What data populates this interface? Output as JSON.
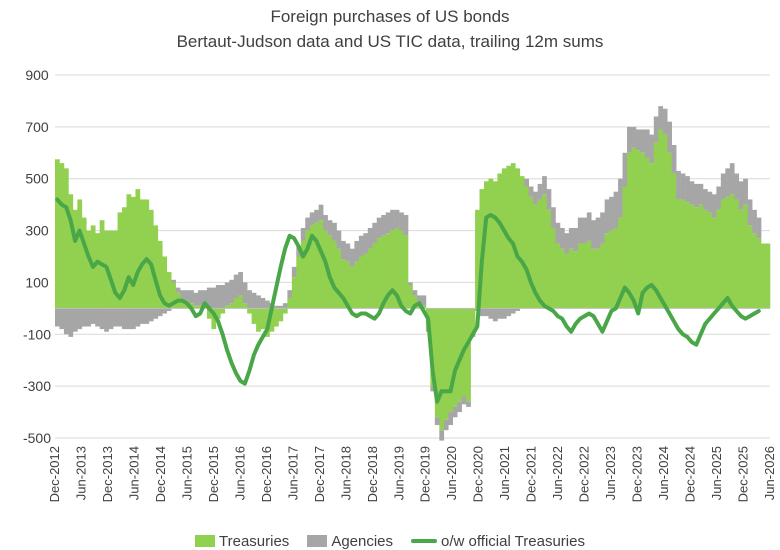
{
  "chart_data": {
    "type": "bar",
    "title": "Foreign purchases of US bonds",
    "subtitle": "Bertaut-Judson data and US TIC data, trailing 12m sums",
    "xlabel": "",
    "ylabel": "",
    "ylim": [
      -500,
      900
    ],
    "yticks": [
      900,
      700,
      500,
      300,
      100,
      -100,
      -300,
      -500
    ],
    "grid": true,
    "legend_position": "bottom",
    "x_tick_labels": [
      "Dec-2012",
      "Jun-2013",
      "Dec-2013",
      "Jun-2014",
      "Dec-2014",
      "Jun-2015",
      "Dec-2015",
      "Jun-2016",
      "Dec-2016",
      "Jun-2017",
      "Dec-2017",
      "Jun-2018",
      "Dec-2018",
      "Jun-2019",
      "Dec-2019",
      "Jun-2020",
      "Dec-2020",
      "Jun-2021",
      "Dec-2021",
      "Jun-2022",
      "Dec-2022",
      "Jun-2023",
      "Dec-2023",
      "Jun-2024",
      "Dec-2024",
      "Jun-2025",
      "Dec-2025",
      "Jun-2026"
    ],
    "colors": {
      "treasuries": "#92d050",
      "agencies": "#a6a6a6",
      "official": "#4aa748"
    },
    "series": [
      {
        "name": "Treasuries",
        "kind": "stacked-bar",
        "values": [
          575,
          560,
          540,
          440,
          380,
          420,
          350,
          300,
          320,
          290,
          340,
          300,
          300,
          300,
          370,
          390,
          440,
          430,
          460,
          420,
          420,
          380,
          320,
          260,
          200,
          140,
          100,
          60,
          40,
          30,
          20,
          10,
          10,
          0,
          -40,
          -80,
          -40,
          -20,
          10,
          20,
          40,
          50,
          20,
          -20,
          -60,
          -90,
          -80,
          -110,
          -90,
          -70,
          -50,
          -20,
          40,
          120,
          200,
          260,
          300,
          320,
          330,
          340,
          300,
          280,
          260,
          230,
          190,
          180,
          160,
          180,
          200,
          210,
          230,
          250,
          270,
          280,
          290,
          300,
          310,
          300,
          280,
          90,
          50,
          20,
          10,
          -80,
          -300,
          -420,
          -470,
          -430,
          -400,
          -380,
          -360,
          -340,
          -360,
          -100,
          380,
          460,
          490,
          500,
          490,
          520,
          540,
          550,
          560,
          540,
          510,
          470,
          430,
          400,
          420,
          440,
          380,
          310,
          250,
          230,
          210,
          230,
          220,
          250,
          250,
          260,
          230,
          230,
          250,
          290,
          300,
          310,
          350,
          470,
          600,
          620,
          610,
          600,
          580,
          560,
          640,
          690,
          670,
          600,
          520,
          420,
          420,
          410,
          400,
          390,
          400,
          380,
          370,
          350,
          380,
          420,
          430,
          440,
          420,
          380,
          400,
          320,
          290,
          270,
          250,
          250
        ]
      },
      {
        "name": "Agencies",
        "kind": "stacked-bar",
        "values": [
          -70,
          -80,
          -100,
          -110,
          -90,
          -80,
          -70,
          -70,
          -60,
          -70,
          -80,
          -90,
          -80,
          -70,
          -70,
          -80,
          -80,
          -80,
          -70,
          -60,
          -60,
          -50,
          -40,
          -30,
          -20,
          -10,
          10,
          20,
          30,
          40,
          50,
          50,
          60,
          70,
          80,
          80,
          90,
          90,
          90,
          90,
          90,
          90,
          80,
          70,
          60,
          50,
          40,
          30,
          20,
          10,
          10,
          20,
          30,
          40,
          40,
          50,
          50,
          50,
          50,
          60,
          60,
          60,
          70,
          70,
          70,
          70,
          70,
          80,
          80,
          80,
          80,
          80,
          80,
          80,
          80,
          80,
          70,
          70,
          80,
          10,
          20,
          30,
          40,
          -10,
          -20,
          -30,
          -40,
          -40,
          -50,
          -40,
          -40,
          -30,
          -20,
          -10,
          -10,
          -30,
          -30,
          -40,
          -50,
          -40,
          -40,
          -30,
          -20,
          -10,
          0,
          30,
          40,
          50,
          60,
          70,
          80,
          80,
          80,
          80,
          80,
          80,
          90,
          100,
          100,
          110,
          110,
          120,
          120,
          130,
          130,
          140,
          150,
          130,
          100,
          80,
          80,
          90,
          110,
          110,
          100,
          90,
          100,
          120,
          110,
          110,
          100,
          100,
          90,
          90,
          80,
          80,
          80,
          90,
          90,
          100,
          110,
          120,
          100,
          110,
          100,
          100,
          90,
          80
        ]
      },
      {
        "name": "o/w official Treasuries",
        "kind": "line",
        "values": [
          420,
          400,
          390,
          340,
          260,
          300,
          250,
          200,
          160,
          180,
          170,
          160,
          110,
          60,
          40,
          70,
          120,
          90,
          140,
          170,
          190,
          170,
          110,
          50,
          20,
          10,
          20,
          30,
          30,
          20,
          0,
          -30,
          -20,
          20,
          0,
          -20,
          -50,
          -100,
          -160,
          -210,
          -250,
          -280,
          -290,
          -240,
          -180,
          -140,
          -110,
          -80,
          0,
          80,
          160,
          230,
          280,
          270,
          240,
          200,
          230,
          280,
          260,
          220,
          180,
          120,
          80,
          60,
          40,
          10,
          -20,
          -30,
          -20,
          -20,
          -30,
          -40,
          -20,
          20,
          50,
          70,
          50,
          10,
          -10,
          -20,
          10,
          20,
          -10,
          -40,
          -240,
          -360,
          -320,
          -320,
          -320,
          -240,
          -200,
          -160,
          -130,
          -100,
          -70,
          180,
          350,
          360,
          350,
          330,
          300,
          270,
          250,
          200,
          180,
          150,
          100,
          60,
          30,
          10,
          0,
          -10,
          -30,
          -40,
          -70,
          -90,
          -60,
          -40,
          -30,
          -20,
          -30,
          -60,
          -90,
          -50,
          -10,
          0,
          40,
          80,
          60,
          30,
          -20,
          60,
          80,
          90,
          70,
          40,
          10,
          -20,
          -50,
          -80,
          -100,
          -110,
          -130,
          -140,
          -100,
          -60,
          -40,
          -20,
          0,
          20,
          40,
          10,
          -10,
          -30,
          -40,
          -30,
          -20,
          -10
        ]
      }
    ],
    "legend": [
      {
        "label": "Treasuries",
        "kind": "box"
      },
      {
        "label": "Agencies",
        "kind": "box"
      },
      {
        "label": "o/w official Treasuries",
        "kind": "line"
      }
    ]
  }
}
